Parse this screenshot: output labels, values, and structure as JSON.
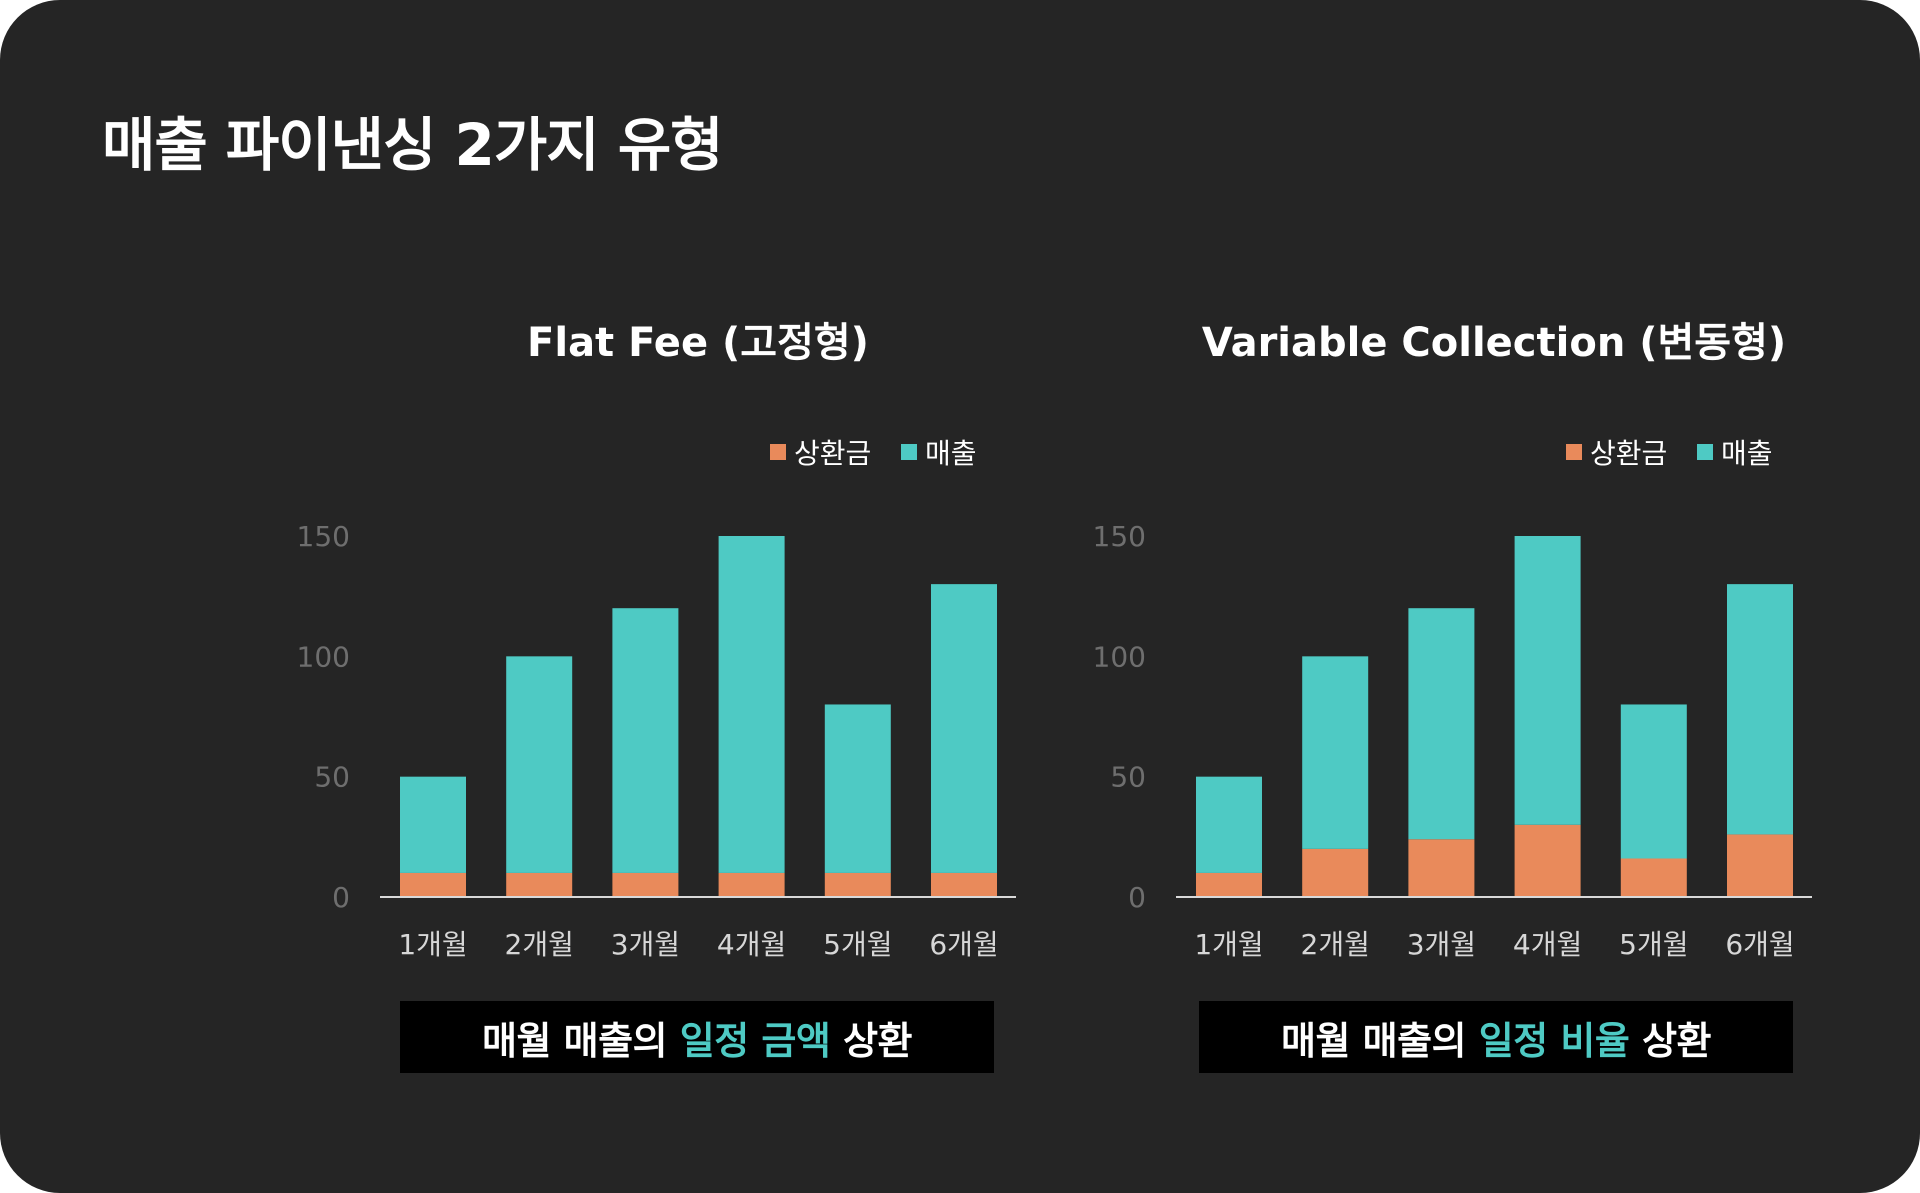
{
  "title": "매출 파이낸싱 2가지 유형",
  "colors": {
    "background": "#252525",
    "repayment": "#E98A5B",
    "revenue": "#4ECAC4",
    "highlight": "#4ECAC4"
  },
  "chart_data": [
    {
      "type": "bar",
      "stacked": true,
      "title": "Flat Fee (고정형)",
      "categories": [
        "1개월",
        "2개월",
        "3개월",
        "4개월",
        "5개월",
        "6개월"
      ],
      "series": [
        {
          "name": "상환금",
          "values": [
            10,
            10,
            10,
            10,
            10,
            10
          ]
        },
        {
          "name": "매출",
          "values": [
            40,
            90,
            110,
            140,
            70,
            120
          ]
        }
      ],
      "yticks": [
        "0",
        "50",
        "100",
        "150"
      ],
      "ylim": [
        0,
        150
      ],
      "legend": "top-right",
      "grid": false
    },
    {
      "type": "bar",
      "stacked": true,
      "title": "Variable Collection (변동형)",
      "categories": [
        "1개월",
        "2개월",
        "3개월",
        "4개월",
        "5개월",
        "6개월"
      ],
      "series": [
        {
          "name": "상환금",
          "values": [
            10,
            20,
            24,
            30,
            16,
            26
          ]
        },
        {
          "name": "매출",
          "values": [
            40,
            80,
            96,
            120,
            64,
            104
          ]
        }
      ],
      "yticks": [
        "0",
        "50",
        "100",
        "150"
      ],
      "ylim": [
        0,
        150
      ],
      "legend": "top-right",
      "grid": false
    }
  ],
  "captions": [
    {
      "before": "매월 매출의 ",
      "highlight": "일정 금액",
      "after": " 상환"
    },
    {
      "before": "매월 매출의 ",
      "highlight": "일정 비율",
      "after": " 상환"
    }
  ]
}
